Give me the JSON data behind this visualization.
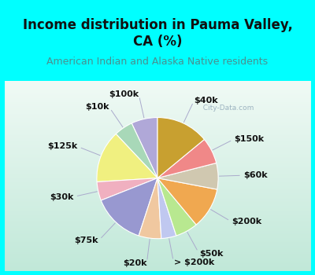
{
  "title": "Income distribution in Pauma Valley,\nCA (%)",
  "subtitle": "American Indian and Alaska Native residents",
  "title_bg": "#00FFFF",
  "chart_bg_top": "#e0f5f0",
  "chart_bg_bottom": "#c8eee0",
  "border_color": "#00FFFF",
  "border_width": 8,
  "watermark": "  City-Data.com",
  "slices": [
    {
      "label": "$100k",
      "value": 7,
      "color": "#b0a8d8"
    },
    {
      "label": "$10k",
      "value": 5,
      "color": "#a8d8b8"
    },
    {
      "label": "$125k",
      "value": 14,
      "color": "#f0f080"
    },
    {
      "label": "$30k",
      "value": 5,
      "color": "#f0b0c0"
    },
    {
      "label": "$75k",
      "value": 14,
      "color": "#9898d0"
    },
    {
      "label": "$20k",
      "value": 6,
      "color": "#f0c8a0"
    },
    {
      "label": "> $200k",
      "value": 4,
      "color": "#c0c8f0"
    },
    {
      "label": "$50k",
      "value": 6,
      "color": "#b8e890"
    },
    {
      "label": "$200k",
      "value": 11,
      "color": "#f0a850"
    },
    {
      "label": "$60k",
      "value": 7,
      "color": "#d0c8b0"
    },
    {
      "label": "$150k",
      "value": 7,
      "color": "#f08888"
    },
    {
      "label": "$40k",
      "value": 14,
      "color": "#c8a030"
    }
  ],
  "title_fontsize": 12,
  "subtitle_fontsize": 9,
  "label_fontsize": 8
}
